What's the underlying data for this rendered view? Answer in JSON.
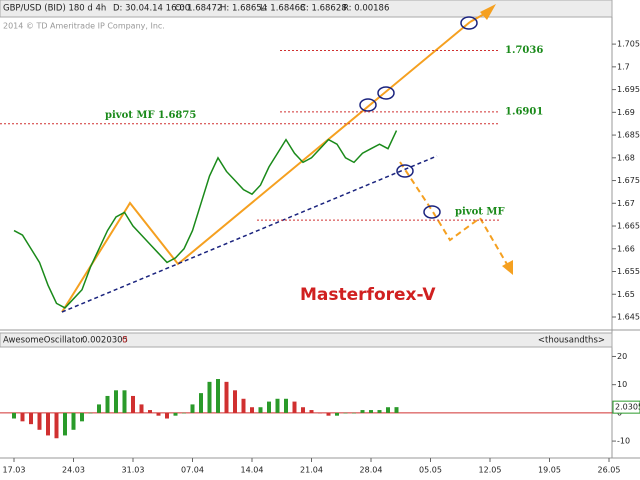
{
  "toolbar": {
    "symbol": "GBP/USD (BID) 180 d 4h",
    "date": "D: 30.04.14 16:00",
    "open": "O: 1.68472",
    "high": "H: 1.68654",
    "low": "L: 1.68468",
    "close": "C: 1.68628",
    "range": "R: 0.00186"
  },
  "copyright": "2014 © TD Ameritrade IP Company, Inc.",
  "chart_data": [
    {
      "type": "line",
      "color": "#1a8a1a",
      "categories": [
        "17.03",
        null,
        null,
        null,
        null,
        null,
        null,
        "24.03",
        null,
        null,
        null,
        null,
        null,
        null,
        "31.03",
        null,
        null,
        null,
        null,
        null,
        null,
        "07.04",
        null,
        null,
        null,
        null,
        null,
        null,
        "14.04",
        null,
        null,
        null,
        null,
        null,
        null,
        "21.04",
        null,
        null,
        null,
        null,
        null,
        null,
        "28.04",
        null,
        null,
        null,
        null,
        null,
        null,
        "05.05",
        null,
        null,
        null,
        null,
        null,
        null,
        "12.05",
        null,
        null,
        null,
        null,
        null,
        null,
        "19.05",
        null,
        null,
        null,
        null,
        null,
        null,
        "26.05"
      ],
      "values": [
        1.664,
        1.663,
        1.66,
        1.657,
        1.652,
        1.648,
        1.647,
        1.649,
        1.651,
        1.656,
        1.66,
        1.664,
        1.667,
        1.668,
        1.665,
        1.663,
        1.661,
        1.659,
        1.657,
        1.658,
        1.66,
        1.664,
        1.67,
        1.676,
        1.68,
        1.677,
        1.675,
        1.673,
        1.672,
        1.674,
        1.678,
        1.681,
        1.684,
        1.681,
        1.679,
        1.68,
        1.682,
        1.684,
        1.683,
        1.68,
        1.679,
        1.681,
        1.682,
        1.683,
        1.682,
        1.686,
        null,
        null,
        null,
        null,
        null,
        null,
        null,
        null,
        null,
        null,
        null,
        null,
        null,
        null,
        null,
        null,
        null,
        null,
        null,
        null,
        null,
        null,
        null,
        null,
        null
      ],
      "ylim": [
        1.6428,
        1.7103
      ],
      "yticks": [
        1.645,
        1.65,
        1.655,
        1.66,
        1.665,
        1.67,
        1.675,
        1.68,
        1.685,
        1.69,
        1.695,
        1.7,
        1.705
      ],
      "levels": [
        {
          "value": 1.7036,
          "label": "1.7036"
        },
        {
          "value": 1.6901,
          "label": "1.6901"
        },
        {
          "value": 1.6875,
          "label": "pivot MF 1.6875"
        },
        {
          "value": 1.6663,
          "label": "pivot MF"
        }
      ],
      "annotation": "Masterforex-V"
    },
    {
      "type": "bar",
      "title": "AwesomeOscillator",
      "current": 0.0020305,
      "signal": 0,
      "unit": "<thousandths>",
      "up_color": "#2a9a2a",
      "down_color": "#d03030",
      "values": [
        -2,
        -3,
        -4,
        -6,
        -8,
        -9,
        -8,
        -6,
        -3,
        0,
        3,
        6,
        8,
        8,
        6,
        3,
        1,
        -1,
        -2,
        -1,
        0,
        3,
        7,
        11,
        12,
        11,
        8,
        5,
        2,
        2,
        4,
        5,
        5,
        4,
        2,
        1,
        0,
        -1,
        -1,
        0,
        0,
        1,
        1,
        1,
        2,
        2.0305,
        null,
        null,
        null,
        null,
        null,
        null,
        null,
        null,
        null,
        null,
        null,
        null,
        null,
        null,
        null,
        null,
        null,
        null,
        null,
        null,
        null,
        null,
        null,
        null,
        null
      ],
      "ylim": [
        -16,
        23
      ],
      "yticks": [
        20,
        10,
        0,
        -10
      ]
    }
  ]
}
